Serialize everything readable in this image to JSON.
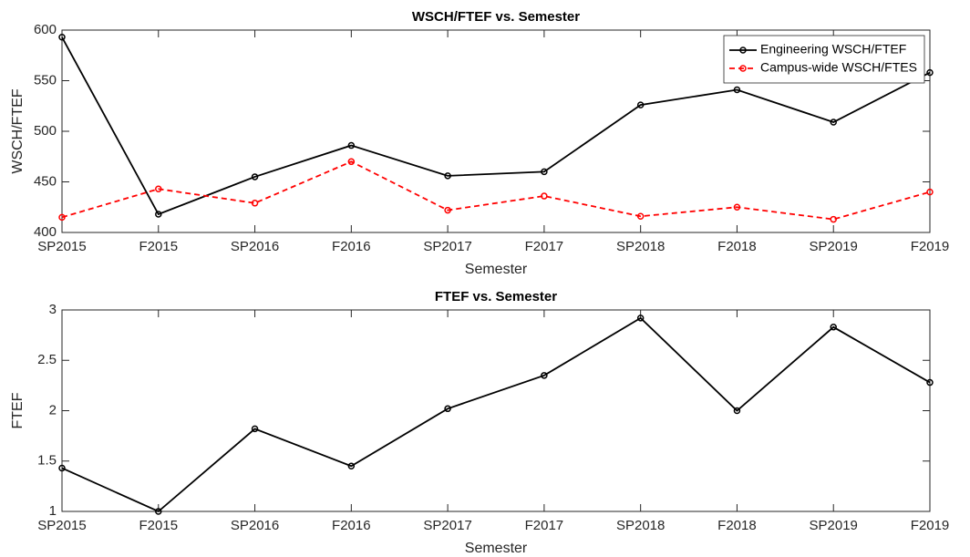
{
  "chart_data": [
    {
      "type": "line",
      "title": "WSCH/FTEF vs. Semester",
      "x_label": "Semester",
      "y_label": "WSCH/FTEF",
      "categories": [
        "SP2015",
        "F2015",
        "SP2016",
        "F2016",
        "SP2017",
        "F2017",
        "SP2018",
        "F2018",
        "SP2019",
        "F2019"
      ],
      "series": [
        {
          "name": "Engineering WSCH/FTEF",
          "color": "#000000",
          "linestyle": "solid",
          "values": [
            593,
            418,
            455,
            486,
            456,
            460,
            526,
            541,
            509,
            558
          ]
        },
        {
          "name": "Campus-wide WSCH/FTES",
          "color": "#ff0000",
          "linestyle": "dashed",
          "values": [
            415,
            443,
            429,
            470,
            422,
            436,
            416,
            425,
            413,
            440
          ]
        }
      ],
      "ylim": [
        400,
        600
      ],
      "yticks": [
        400,
        450,
        500,
        550,
        600
      ],
      "legend": "northeast"
    },
    {
      "type": "line",
      "title": "FTEF vs. Semester",
      "x_label": "Semester",
      "y_label": "FTEF",
      "categories": [
        "SP2015",
        "F2015",
        "SP2016",
        "F2016",
        "SP2017",
        "F2017",
        "SP2018",
        "F2018",
        "SP2019",
        "F2019"
      ],
      "series": [
        {
          "color": "#000000",
          "linestyle": "solid",
          "values": [
            1.43,
            1.0,
            1.82,
            1.45,
            2.02,
            2.35,
            2.92,
            2.0,
            2.83,
            2.28
          ]
        }
      ],
      "ylim": [
        1,
        3
      ],
      "yticks": [
        1,
        1.5,
        2,
        2.5,
        3
      ]
    }
  ]
}
